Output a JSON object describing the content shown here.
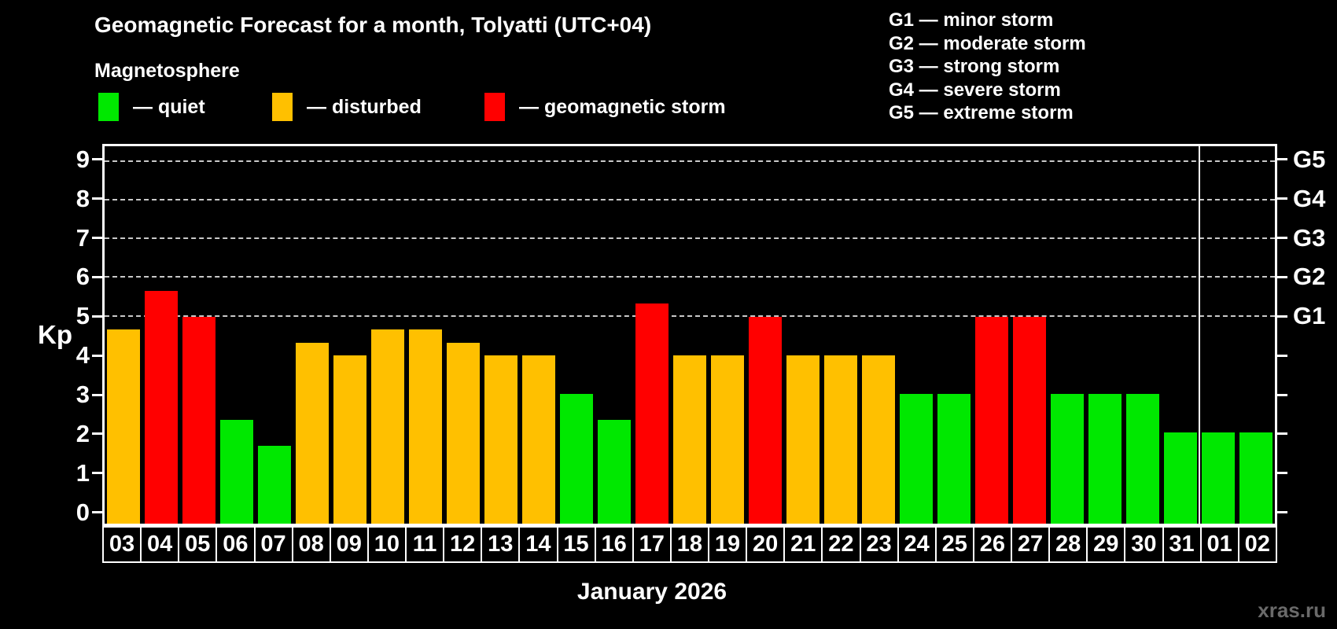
{
  "title": "Geomagnetic Forecast for a month, Tolyatti (UTC+04)",
  "subtitle": "Magnetosphere",
  "condition_legend": [
    {
      "key": "quiet",
      "label": "— quiet",
      "color": "#00e800"
    },
    {
      "key": "disturbed",
      "label": "— disturbed",
      "color": "#ffc000"
    },
    {
      "key": "storm",
      "label": "— geomagnetic storm",
      "color": "#ff0000"
    }
  ],
  "storm_scale_legend": [
    "G1 — minor storm",
    "G2 — moderate storm",
    "G3 — strong storm",
    "G4 — severe storm",
    "G5 — extreme storm"
  ],
  "axis": {
    "y_label": "Kp",
    "y_ticks": [
      0,
      1,
      2,
      3,
      4,
      5,
      6,
      7,
      8,
      9
    ],
    "right_scale": [
      {
        "kp": 5,
        "label": "G1"
      },
      {
        "kp": 6,
        "label": "G2"
      },
      {
        "kp": 7,
        "label": "G3"
      },
      {
        "kp": 8,
        "label": "G4"
      },
      {
        "kp": 9,
        "label": "G5"
      }
    ],
    "x_label": "January 2026"
  },
  "watermark": "xras.ru",
  "chart_data": {
    "type": "bar",
    "title": "Geomagnetic Forecast for a month, Tolyatti (UTC+04)",
    "xlabel": "January 2026",
    "ylabel": "Kp",
    "ylim": [
      -0.35,
      9.4
    ],
    "grid": "dashed horizontal at Kp 5-9",
    "gridlines_at": [
      5,
      6,
      7,
      8,
      9
    ],
    "legend_position": "top-left",
    "categories": [
      "03",
      "04",
      "05",
      "06",
      "07",
      "08",
      "09",
      "10",
      "11",
      "12",
      "13",
      "14",
      "15",
      "16",
      "17",
      "18",
      "19",
      "20",
      "21",
      "22",
      "23",
      "24",
      "25",
      "26",
      "27",
      "28",
      "29",
      "30",
      "31",
      "01",
      "02"
    ],
    "values": [
      4.67,
      5.67,
      5,
      2.33,
      1.67,
      4.33,
      4,
      4.67,
      4.67,
      4.33,
      4,
      4,
      3,
      2.33,
      5.33,
      4,
      4,
      5,
      4,
      4,
      4,
      3,
      3,
      5,
      5,
      3,
      3,
      3,
      2,
      2,
      2
    ],
    "status": [
      "disturbed",
      "storm",
      "storm",
      "quiet",
      "quiet",
      "disturbed",
      "disturbed",
      "disturbed",
      "disturbed",
      "disturbed",
      "disturbed",
      "disturbed",
      "quiet",
      "quiet",
      "storm",
      "disturbed",
      "disturbed",
      "storm",
      "disturbed",
      "disturbed",
      "disturbed",
      "quiet",
      "quiet",
      "storm",
      "storm",
      "quiet",
      "quiet",
      "quiet",
      "quiet",
      "quiet",
      "quiet"
    ],
    "colors": {
      "quiet": "#00e800",
      "disturbed": "#ffc000",
      "storm": "#ff0000"
    },
    "month_separator_after_index": 28
  }
}
